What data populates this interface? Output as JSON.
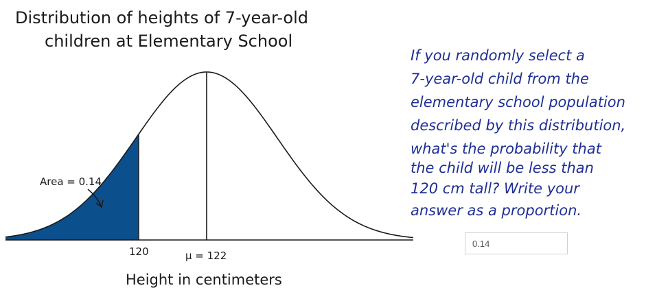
{
  "figure": {
    "title_line1": "Distribution of heights of 7-year-old",
    "title_line2": "children at Elementary School",
    "area_label": "Area = 0.14",
    "tick_120": "120",
    "tick_mu": "μ = 122",
    "x_axis_label": "Height in centimeters",
    "shade_color": "#0b4f8c",
    "shaded_area": 0.14,
    "mean": 122,
    "cutoff": 120
  },
  "question": {
    "lines": [
      "If you randomly select a",
      "7-year-old child from the",
      "elementary school population",
      "described by this distribution,",
      "what's the probability that",
      "the child will be less than",
      "120 cm tall? Write your",
      "answer as a proportion."
    ],
    "color": "#1f2f96"
  },
  "answer": {
    "value": "0.14"
  }
}
